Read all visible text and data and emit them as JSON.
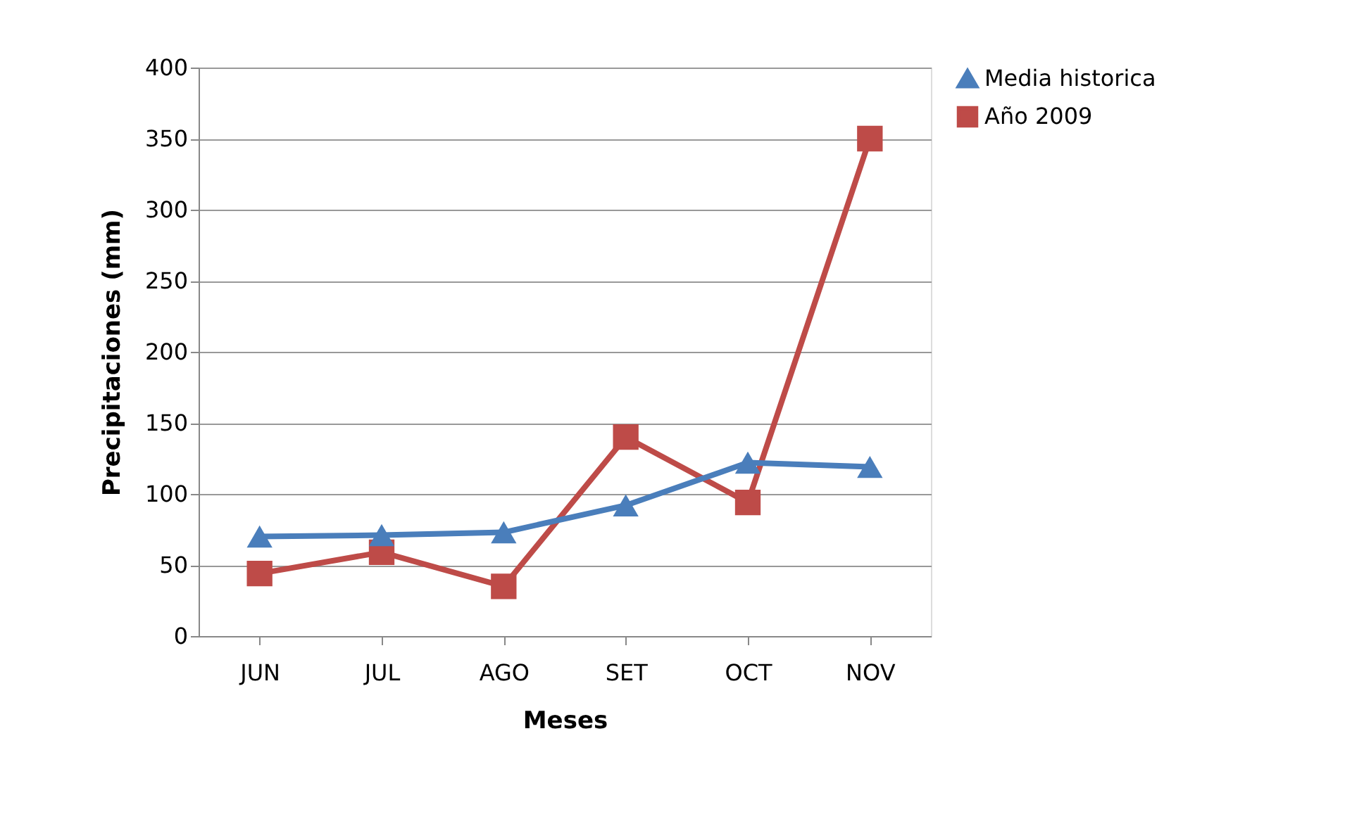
{
  "chart_data": {
    "type": "line",
    "xlabel": "Meses",
    "ylabel": "Precipitaciones (mm)",
    "categories": [
      "JUN",
      "JUL",
      "AGO",
      "SET",
      "OCT",
      "NOV"
    ],
    "series": [
      {
        "name": "Media historica",
        "color": "#4a7ebb",
        "marker": "triangle",
        "values": [
          70,
          71,
          73,
          92,
          122,
          119
        ]
      },
      {
        "name": "Año 2009",
        "color": "#be4b48",
        "marker": "square",
        "values": [
          44,
          59,
          35,
          140,
          94,
          350
        ]
      }
    ],
    "ylim": [
      0,
      400
    ],
    "yticks": [
      0,
      50,
      100,
      150,
      200,
      250,
      300,
      350,
      400
    ],
    "grid": "y",
    "legend": "right",
    "line_style": "solid"
  }
}
